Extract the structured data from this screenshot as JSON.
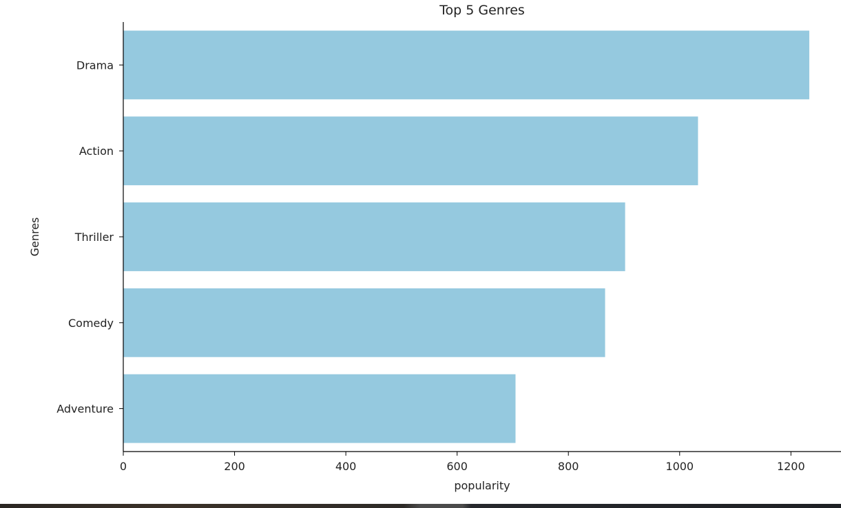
{
  "chart_data": {
    "type": "bar",
    "orientation": "horizontal",
    "title": "Top 5 Genres",
    "xlabel": "popularity",
    "ylabel": "Genres",
    "categories": [
      "Drama",
      "Action",
      "Thriller",
      "Comedy",
      "Adventure"
    ],
    "values": [
      1233,
      1033,
      902,
      866,
      705
    ],
    "xlim": [
      0,
      1290
    ],
    "xticks": [
      0,
      200,
      400,
      600,
      800,
      1000,
      1200
    ],
    "grid": false,
    "legend": "none",
    "bar_color": "#95c9df"
  }
}
